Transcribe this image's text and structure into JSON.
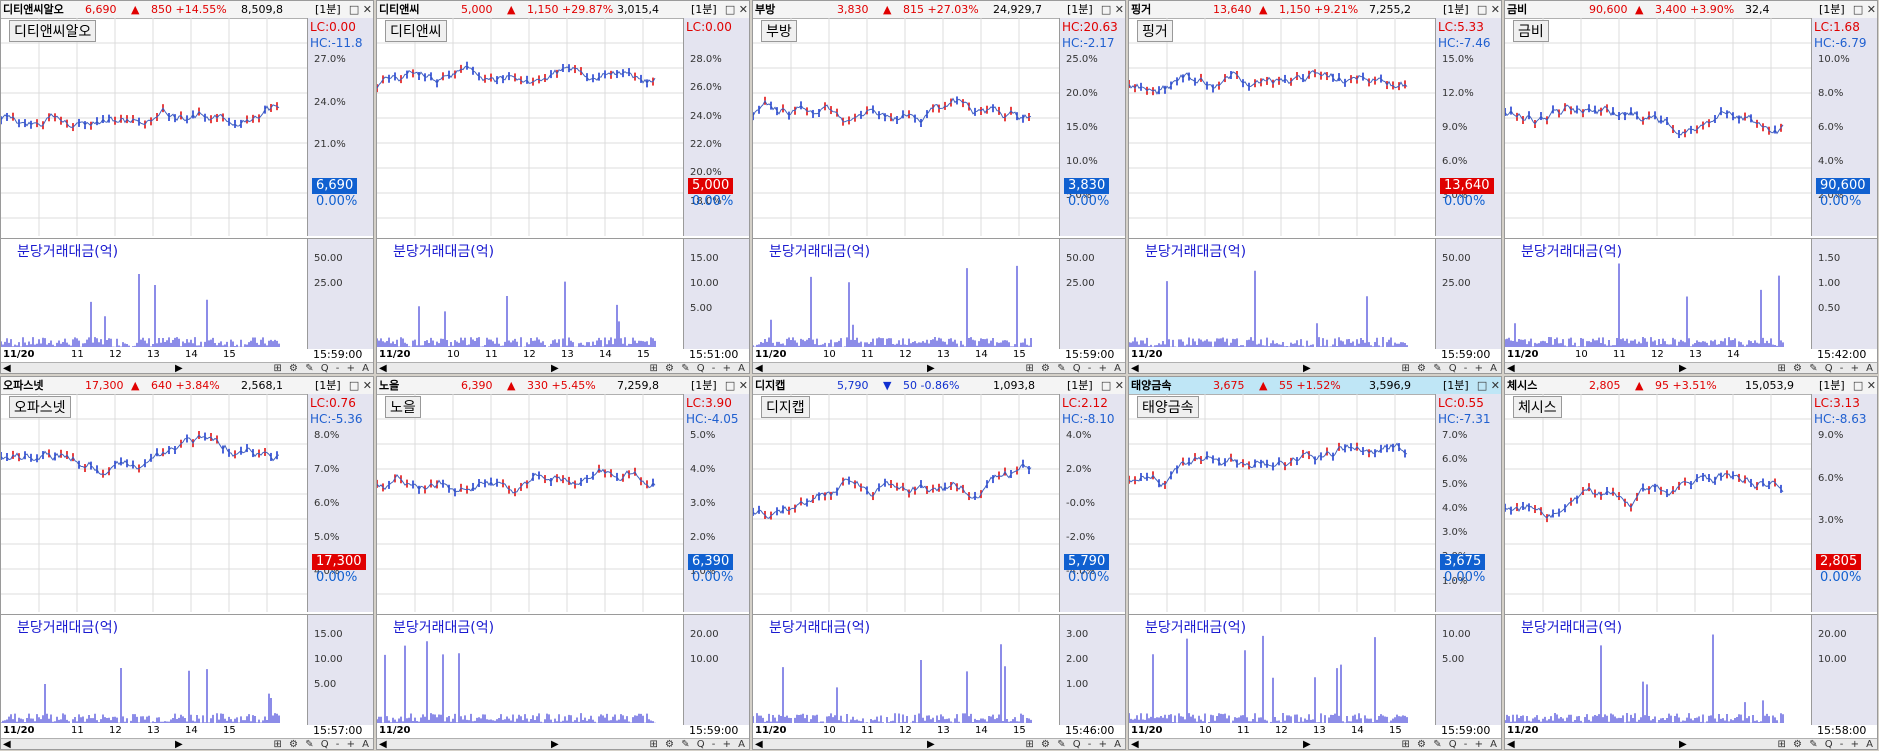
{
  "panels": [
    {
      "name": "디티앤씨알오",
      "price": "6,690",
      "chg": "850 +14.55%",
      "amt": "8,509,8",
      "tf": "[1분]",
      "arrow": "up",
      "label": "디티앤씨알오",
      "lc": "LC:0.00",
      "hc": "HC:-11.8",
      "ticks": [
        "27.0%",
        "24.0%",
        "21.0%",
        "18.0%"
      ],
      "pb": "6,690",
      "pct": "0.00%",
      "sub": "분당거래대금(억)",
      "subticks": [
        "50.00",
        "25.00"
      ],
      "x": [
        "11/20",
        "11",
        "12",
        "13",
        "14",
        "15"
      ],
      "t": "15:59:00"
    },
    {
      "name": "디티앤씨",
      "price": "5,000",
      "chg": "1,150 +29.87%",
      "amt": "3,015,4",
      "tf": "[1분]",
      "arrow": "up",
      "label": "디티앤씨",
      "lc": "LC:0.00",
      "hc": "",
      "ticks": [
        "28.0%",
        "26.0%",
        "24.0%",
        "22.0%",
        "20.0%",
        "18.0%"
      ],
      "pb": "5,000",
      "pct": "0.00%",
      "sub": "분당거래대금(억)",
      "subticks": [
        "15.00",
        "10.00",
        "5.00"
      ],
      "x": [
        "11/20",
        "10",
        "11",
        "12",
        "13",
        "14",
        "15"
      ],
      "t": "15:51:00"
    },
    {
      "name": "부방",
      "price": "3,830",
      "chg": "815 +27.03%",
      "amt": "24,929,7",
      "tf": "[1분]",
      "arrow": "up",
      "label": "부방",
      "lc": "HC:20.63",
      "hc": "HC:-2.17",
      "ticks": [
        "25.0%",
        "20.0%",
        "15.0%",
        "10.0%",
        "5.0%"
      ],
      "pb": "3,830",
      "pct": "0.00%",
      "sub": "분당거래대금(억)",
      "subticks": [
        "50.00",
        "25.00"
      ],
      "x": [
        "11/20",
        "10",
        "11",
        "12",
        "13",
        "14",
        "15"
      ],
      "t": "15:59:00"
    },
    {
      "name": "핑거",
      "price": "13,640",
      "chg": "1,150 +9.21%",
      "amt": "7,255,2",
      "tf": "[1분]",
      "arrow": "up",
      "label": "핑거",
      "lc": "LC:5.33",
      "hc": "HC:-7.46",
      "ticks": [
        "15.0%",
        "12.0%",
        "9.0%",
        "6.0%",
        "3.0%"
      ],
      "pb": "13,640",
      "pct": "0.00%",
      "sub": "분당거래대금(억)",
      "subticks": [
        "50.00",
        "25.00"
      ],
      "x": [
        "11/20"
      ],
      "t": "15:59:00"
    },
    {
      "name": "금비",
      "price": "90,600",
      "chg": "3,400 +3.90%",
      "amt": "32,4",
      "tf": "[1분]",
      "arrow": "up",
      "label": "금비",
      "lc": "LC:1.68",
      "hc": "HC:-6.79",
      "ticks": [
        "10.0%",
        "8.0%",
        "6.0%",
        "4.0%",
        "2.0%"
      ],
      "pb": "90,600",
      "pct": "0.00%",
      "sub": "분당거래대금(억)",
      "subticks": [
        "1.50",
        "1.00",
        "0.50"
      ],
      "x": [
        "11/20",
        "10",
        "11",
        "12",
        "13",
        "14"
      ],
      "t": "15:42:00"
    },
    {
      "name": "오파스넷",
      "price": "17,300",
      "chg": "640 +3.84%",
      "amt": "2,568,1",
      "tf": "[1분]",
      "arrow": "up",
      "label": "오파스넷",
      "lc": "LC:0.76",
      "hc": "HC:-5.36",
      "ticks": [
        "8.0%",
        "7.0%",
        "6.0%",
        "5.0%",
        "4.0%"
      ],
      "pb": "17,300",
      "pct": "0.00%",
      "sub": "분당거래대금(억)",
      "subticks": [
        "15.00",
        "10.00",
        "5.00"
      ],
      "x": [
        "11/20",
        "11",
        "12",
        "13",
        "14",
        "15"
      ],
      "t": "15:57:00"
    },
    {
      "name": "노을",
      "price": "6,390",
      "chg": "330 +5.45%",
      "amt": "7,259,8",
      "tf": "[1분]",
      "arrow": "up",
      "label": "노을",
      "lc": "LC:3.90",
      "hc": "HC:-4.05",
      "ticks": [
        "5.0%",
        "4.0%",
        "3.0%",
        "2.0%",
        "1.0%"
      ],
      "pb": "6,390",
      "pct": "0.00%",
      "sub": "분당거래대금(억)",
      "subticks": [
        "20.00",
        "10.00"
      ],
      "x": [
        "11/20"
      ],
      "t": "15:59:00"
    },
    {
      "name": "디지캡",
      "price": "5,790",
      "chg": "50 -0.86%",
      "amt": "1,093,8",
      "tf": "[1분]",
      "arrow": "dn",
      "label": "디지캡",
      "lc": "LC:2.12",
      "hc": "HC:-8.10",
      "ticks": [
        "4.0%",
        "2.0%",
        "-0.0%",
        "-2.0%",
        "-4.0%"
      ],
      "pb": "5,790",
      "pct": "0.00%",
      "sub": "분당거래대금(억)",
      "subticks": [
        "3.00",
        "2.00",
        "1.00"
      ],
      "x": [
        "11/20",
        "10",
        "11",
        "12",
        "13",
        "14",
        "15"
      ],
      "t": "15:46:00"
    },
    {
      "name": "태양금속",
      "price": "3,675",
      "chg": "55 +1.52%",
      "amt": "3,596,9",
      "tf": "[1분]",
      "arrow": "up",
      "label": "태양금속",
      "lc": "LC:0.55",
      "hc": "HC:-7.31",
      "ticks": [
        "7.0%",
        "6.0%",
        "5.0%",
        "4.0%",
        "3.0%",
        "2.0%",
        "1.0%"
      ],
      "pb": "3,675",
      "pct": "0.00%",
      "sub": "분당거래대금(억)",
      "subticks": [
        "10.00",
        "5.00"
      ],
      "x": [
        "11/20",
        "10",
        "11",
        "12",
        "13",
        "14",
        "15"
      ],
      "t": "15:59:00"
    },
    {
      "name": "체시스",
      "price": "2,805",
      "chg": "95 +3.51%",
      "amt": "15,053,9",
      "tf": "[1분]",
      "arrow": "up",
      "label": "체시스",
      "lc": "LC:3.13",
      "hc": "HC:-8.63",
      "ticks": [
        "9.0%",
        "6.0%",
        "3.0%",
        "0.0%"
      ],
      "pb": "2,805",
      "pct": "0.00%",
      "sub": "분당거래대금(억)",
      "subticks": [
        "20.00",
        "10.00"
      ],
      "x": [
        "11/20"
      ],
      "t": "15:58:00"
    }
  ]
}
